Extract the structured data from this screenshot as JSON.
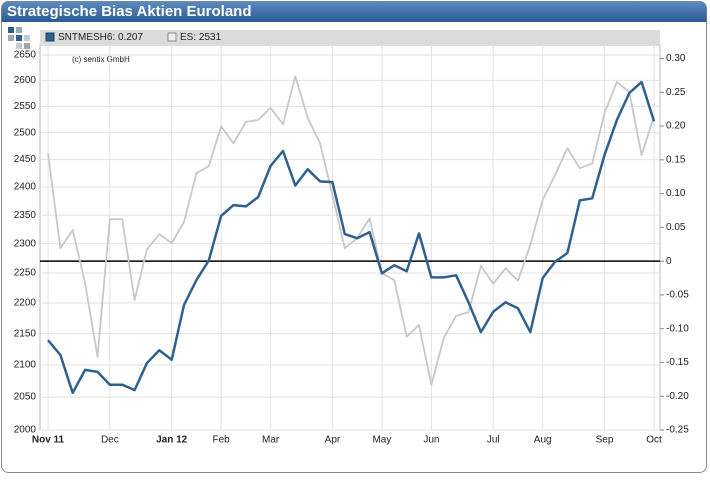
{
  "chart_data": {
    "type": "line",
    "title": "Strategische Bias Aktien Euroland",
    "annotation": "(c) sentix GmbH",
    "categories": [
      "Nov 11",
      null,
      null,
      null,
      null,
      "Dec",
      null,
      null,
      null,
      null,
      "Jan 12",
      null,
      null,
      null,
      "Feb",
      null,
      null,
      null,
      "Mar",
      null,
      null,
      null,
      null,
      "Apr",
      null,
      null,
      null,
      "May",
      null,
      null,
      null,
      "Jun",
      null,
      null,
      null,
      null,
      "Jul",
      null,
      null,
      null,
      "Aug",
      null,
      null,
      null,
      null,
      "Sep",
      null,
      null,
      null,
      "Oct"
    ],
    "series": [
      {
        "name": "ES: 2531",
        "color": "#c8c8c8",
        "axis": "y",
        "values": [
          2462,
          2292,
          2324,
          2233,
          2113,
          2343,
          2343,
          2205,
          2290,
          2317,
          2301,
          2338,
          2425,
          2438,
          2512,
          2480,
          2520,
          2524,
          2547,
          2516,
          2608,
          2528,
          2480,
          2386,
          2292,
          2310,
          2344,
          2250,
          2238,
          2145,
          2164,
          2069,
          2143,
          2179,
          2185,
          2262,
          2232,
          2258,
          2237,
          2298,
          2377,
          2422,
          2471,
          2434,
          2443,
          2537,
          2597,
          2577,
          2458,
          2531
        ]
      },
      {
        "name": "SNTMESH6: 0.207",
        "color": "#2f6190",
        "axis": "y2",
        "values": [
          -0.117,
          -0.139,
          -0.195,
          -0.161,
          -0.164,
          -0.183,
          -0.183,
          -0.191,
          -0.151,
          -0.132,
          -0.146,
          -0.065,
          -0.028,
          0.001,
          0.067,
          0.083,
          0.081,
          0.095,
          0.141,
          0.163,
          0.112,
          0.136,
          0.118,
          0.117,
          0.04,
          0.034,
          0.043,
          -0.018,
          -0.006,
          -0.015,
          0.041,
          -0.024,
          -0.024,
          -0.021,
          -0.061,
          -0.105,
          -0.075,
          -0.061,
          -0.07,
          -0.105,
          -0.025,
          -0.001,
          0.012,
          0.09,
          0.093,
          0.157,
          0.209,
          0.249,
          0.265,
          0.207
        ]
      }
    ],
    "legend_order": [
      1,
      0
    ],
    "ylim": [
      2000,
      2670
    ],
    "log_y": true,
    "yticks": [
      2000,
      2050,
      2100,
      2150,
      2200,
      2250,
      2300,
      2350,
      2400,
      2450,
      2500,
      2550,
      2600,
      2650
    ],
    "y2lim": [
      -0.25,
      0.32
    ],
    "y2ticks": [
      {
        "value": 0.3,
        "label": "0.30"
      },
      0.25,
      {
        "value": 0.2,
        "label": "0.20"
      },
      0.15,
      {
        "value": 0.1,
        "label": "0.10"
      },
      0.05,
      0,
      -0.05,
      {
        "value": -0.1,
        "label": "-0.10"
      },
      -0.15,
      {
        "value": -0.2,
        "label": "-0.20"
      },
      -0.25
    ],
    "reference_line": {
      "axis": "y2",
      "value": 0,
      "color": "#000000"
    },
    "grid": true
  }
}
